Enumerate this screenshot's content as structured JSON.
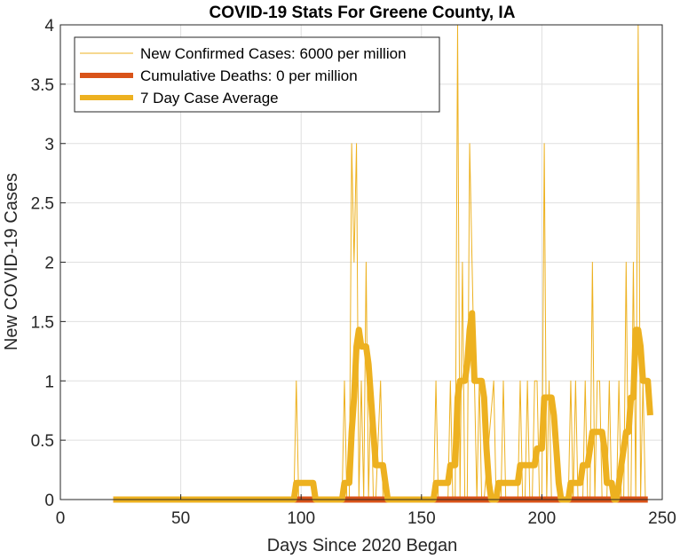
{
  "chart_data": {
    "type": "line",
    "title": "COVID-19 Stats For Greene County, IA",
    "xlabel": "Days Since 2020 Began",
    "ylabel": "New COVID-19 Cases",
    "xlim": [
      0,
      250
    ],
    "ylim": [
      0,
      4
    ],
    "xticks": [
      0,
      50,
      100,
      150,
      200,
      250
    ],
    "yticks": [
      0,
      0.5,
      1,
      1.5,
      2,
      2.5,
      3,
      3.5,
      4
    ],
    "xtick_labels": [
      "0",
      "50",
      "100",
      "150",
      "200",
      "250"
    ],
    "ytick_labels": [
      "0",
      "0.5",
      "1",
      "1.5",
      "2",
      "2.5",
      "3",
      "3.5",
      "4"
    ],
    "grid": true,
    "legend_position": "top-left",
    "series": [
      {
        "name": "New Confirmed Cases: 6000 per million",
        "color": "#EDB120",
        "style": "thin",
        "x": [
          22,
          97,
          98,
          99,
          100,
          116,
          117,
          118,
          119,
          120,
          121,
          122,
          123,
          124,
          125,
          126,
          127,
          128,
          129,
          130,
          131,
          133,
          134,
          135,
          155,
          156,
          157,
          158,
          159,
          160,
          161,
          162,
          163,
          164,
          165,
          166,
          167,
          168,
          169,
          170,
          171,
          172,
          173,
          174,
          175,
          176,
          180,
          181,
          182,
          183,
          184,
          185,
          190,
          191,
          192,
          193,
          194,
          195,
          196,
          197,
          198,
          199,
          200,
          201,
          202,
          203,
          204,
          205,
          206,
          210,
          211,
          212,
          213,
          214,
          215,
          216,
          217,
          218,
          219,
          220,
          221,
          222,
          223,
          224,
          225,
          226,
          227,
          228,
          229,
          230,
          231,
          232,
          233,
          234,
          235,
          236,
          237,
          238,
          239,
          240,
          241,
          242,
          243,
          244
        ],
        "y": [
          0,
          0,
          1,
          0,
          0,
          0,
          0,
          1,
          0,
          0,
          3,
          2,
          3,
          0,
          1,
          0,
          2,
          0,
          1,
          0,
          0,
          1,
          0,
          0,
          0,
          1,
          0,
          0,
          0,
          0,
          0,
          1,
          0,
          0,
          4,
          0,
          2,
          0,
          0,
          3,
          2,
          1,
          0,
          1,
          0,
          0,
          1,
          0,
          0,
          0,
          1,
          0,
          0,
          1,
          0,
          0,
          1,
          0,
          0,
          1,
          1,
          0,
          0,
          3,
          0,
          1,
          0,
          0,
          0,
          0,
          0,
          1,
          0,
          1,
          0,
          0,
          0,
          1,
          0,
          0,
          2,
          0,
          1,
          1,
          0,
          0,
          0,
          1,
          0,
          0,
          0,
          1,
          0,
          0,
          2,
          0,
          0,
          2,
          0,
          4,
          0,
          1,
          0,
          0
        ]
      },
      {
        "name": "Cumulative Deaths: 0 per million",
        "color": "#D95319",
        "style": "thick",
        "x": [
          22,
          244
        ],
        "y": [
          0,
          0
        ]
      },
      {
        "name": "7 Day Case Average",
        "color": "#EDB120",
        "style": "thick",
        "x": [
          22,
          97,
          98,
          99,
          104,
          105,
          106,
          117,
          118,
          119,
          120,
          121,
          122,
          123,
          124,
          125,
          126,
          127,
          128,
          129,
          130,
          131,
          132,
          133,
          134,
          135,
          136,
          137,
          155,
          156,
          157,
          161,
          162,
          163,
          164,
          165,
          166,
          167,
          168,
          169,
          170,
          171,
          172,
          173,
          174,
          175,
          176,
          177,
          178,
          179,
          180,
          181,
          182,
          183,
          184,
          185,
          190,
          191,
          193,
          194,
          197,
          198,
          199,
          200,
          201,
          202,
          203,
          204,
          205,
          206,
          207,
          208,
          211,
          212,
          213,
          216,
          217,
          218,
          219,
          220,
          221,
          222,
          223,
          224,
          225,
          226,
          227,
          228,
          229,
          230,
          231,
          232,
          233,
          234,
          235,
          236,
          237,
          238,
          239,
          240,
          241,
          242,
          243,
          244,
          245
        ],
        "y": [
          0,
          0,
          0.14,
          0.14,
          0.14,
          0.14,
          0,
          0,
          0.14,
          0.14,
          0.14,
          0.57,
          0.86,
          1.29,
          1.43,
          1.29,
          1.29,
          1.29,
          1.14,
          0.86,
          0.57,
          0.29,
          0.29,
          0.29,
          0.29,
          0.14,
          0,
          0,
          0,
          0.14,
          0.14,
          0.14,
          0.29,
          0.29,
          0.29,
          0.86,
          1,
          1,
          1,
          1.14,
          1.43,
          1.57,
          1,
          1,
          1,
          1,
          0.86,
          0.43,
          0.14,
          0,
          0,
          0,
          0.14,
          0.14,
          0.14,
          0.14,
          0.14,
          0.29,
          0.29,
          0.29,
          0.29,
          0.43,
          0.43,
          0.43,
          0.86,
          0.86,
          0.86,
          0.86,
          0.71,
          0.43,
          0.14,
          0,
          0,
          0.14,
          0.14,
          0.14,
          0.29,
          0.29,
          0.29,
          0.43,
          0.57,
          0.57,
          0.57,
          0.57,
          0.57,
          0.43,
          0.14,
          0.14,
          0.14,
          0,
          0,
          0.14,
          0.29,
          0.43,
          0.57,
          0.57,
          0.86,
          0.86,
          1.43,
          1.43,
          1.29,
          1,
          1,
          1,
          0.71
        ]
      }
    ]
  }
}
